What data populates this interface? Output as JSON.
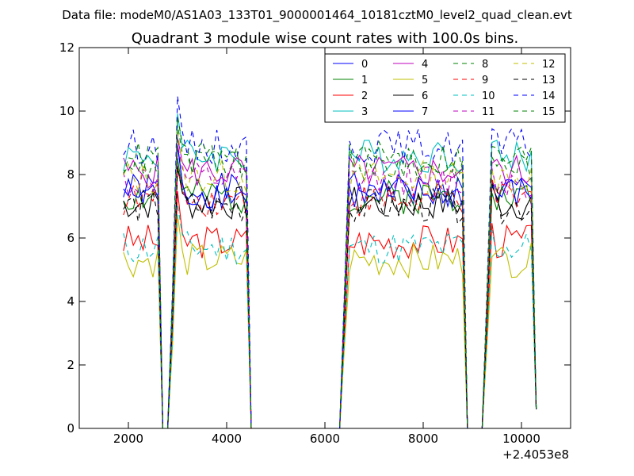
{
  "header_text": "Data file: modeM0/AS1A03_133T01_9000001464_10181cztM0_level2_quad_clean.evt",
  "chart_data": {
    "type": "line",
    "title": "Quadrant 3 module wise count rates with 100.0s bins.",
    "xlabel": "",
    "ylabel": "",
    "x_offset_label": "+2.4053e8",
    "xlim": [
      1000,
      11000
    ],
    "ylim": [
      0,
      12
    ],
    "xticks": [
      2000,
      4000,
      6000,
      8000,
      10000
    ],
    "xtick_labels": [
      "2000",
      "4000",
      "6000",
      "8000",
      "10000"
    ],
    "yticks": [
      0,
      2,
      4,
      6,
      8,
      10,
      12
    ],
    "ytick_labels": [
      "0",
      "2",
      "4",
      "6",
      "8",
      "10",
      "12"
    ],
    "grid": false,
    "legend_position": "top-right",
    "legend_columns": 4,
    "segments": [
      {
        "x_start": 1900,
        "x_end": 2600,
        "plateau": true
      },
      {
        "x_start": 2600,
        "x_end": 2900,
        "plateau": false
      },
      {
        "x_start": 2900,
        "x_end": 4400,
        "plateau": true
      },
      {
        "x_start": 4400,
        "x_end": 6400,
        "plateau": false
      },
      {
        "x_start": 6400,
        "x_end": 8800,
        "plateau": true
      },
      {
        "x_start": 8800,
        "x_end": 9300,
        "plateau": false
      },
      {
        "x_start": 9300,
        "x_end": 10300,
        "plateau": true
      }
    ],
    "series": [
      {
        "name": "0",
        "color": "#0000ff",
        "dash": "solid",
        "level": 7.5
      },
      {
        "name": "1",
        "color": "#008000",
        "dash": "solid",
        "level": 7.3
      },
      {
        "name": "2",
        "color": "#ff0000",
        "dash": "solid",
        "level": 5.9
      },
      {
        "name": "3",
        "color": "#00bfbf",
        "dash": "solid",
        "level": 8.6
      },
      {
        "name": "4",
        "color": "#bf00bf",
        "dash": "solid",
        "level": 8.1
      },
      {
        "name": "5",
        "color": "#bfbf00",
        "dash": "solid",
        "level": 5.3
      },
      {
        "name": "6",
        "color": "#000000",
        "dash": "solid",
        "level": 7.1
      },
      {
        "name": "7",
        "color": "#0000ff",
        "dash": "solid",
        "level": 7.4
      },
      {
        "name": "8",
        "color": "#008000",
        "dash": "dashed",
        "level": 8.3
      },
      {
        "name": "9",
        "color": "#ff0000",
        "dash": "dashed",
        "level": 7.2
      },
      {
        "name": "10",
        "color": "#00bfbf",
        "dash": "dashed",
        "level": 5.7
      },
      {
        "name": "11",
        "color": "#bf00bf",
        "dash": "dashed",
        "level": 7.8
      },
      {
        "name": "12",
        "color": "#bfbf00",
        "dash": "dashed",
        "level": 7.9
      },
      {
        "name": "13",
        "color": "#000000",
        "dash": "dashed",
        "level": 7.0
      },
      {
        "name": "14",
        "color": "#0000ff",
        "dash": "dashed",
        "level": 8.9
      },
      {
        "name": "15",
        "color": "#008000",
        "dash": "dashed",
        "level": 8.5
      }
    ]
  }
}
